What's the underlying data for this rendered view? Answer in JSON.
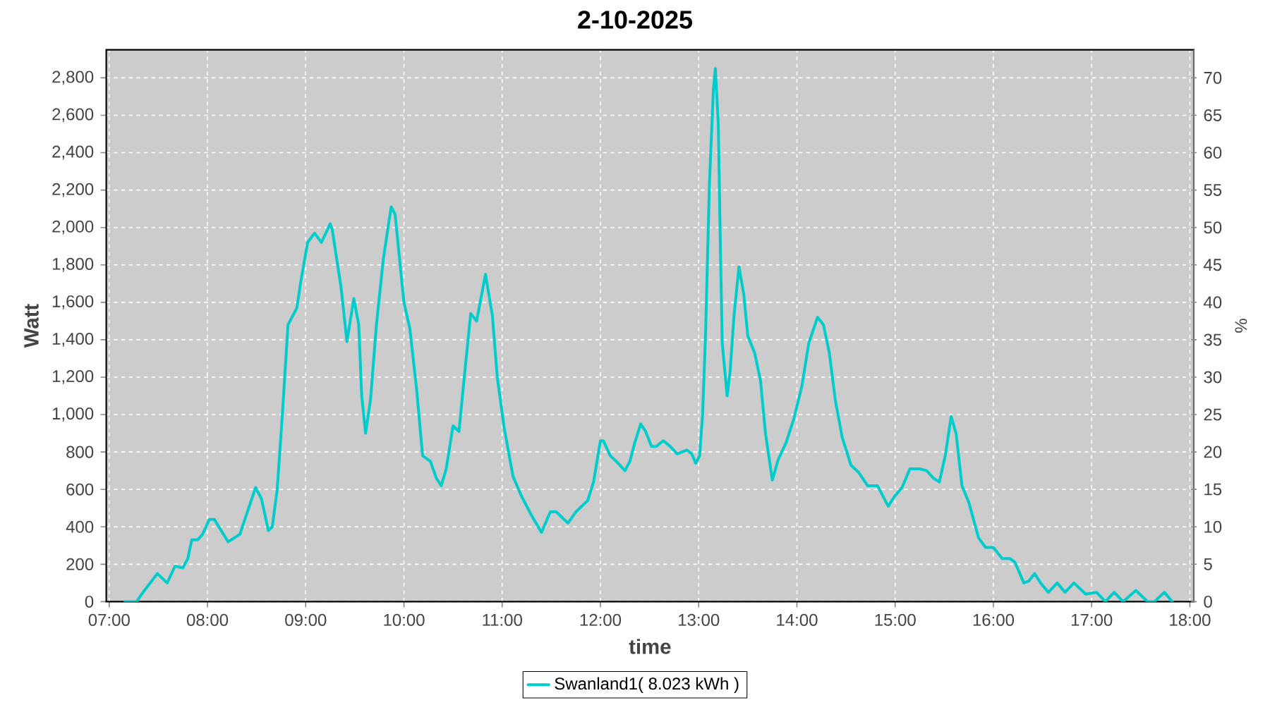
{
  "chart_data": {
    "type": "line",
    "title": "2-10-2025",
    "xlabel": "time",
    "ylabel": "Watt",
    "y2label": "%",
    "x": [
      7.16,
      7.28,
      7.33,
      7.49,
      7.59,
      7.67,
      7.75,
      7.8,
      7.84,
      7.9,
      7.95,
      8.02,
      8.07,
      8.21,
      8.33,
      8.42,
      8.49,
      8.55,
      8.62,
      8.66,
      8.71,
      8.76,
      8.82,
      8.91,
      8.95,
      9.02,
      9.09,
      9.16,
      9.25,
      9.27,
      9.36,
      9.42,
      9.49,
      9.54,
      9.57,
      9.61,
      9.66,
      9.72,
      9.79,
      9.87,
      9.91,
      10.0,
      10.06,
      10.13,
      10.19,
      10.27,
      10.33,
      10.38,
      10.43,
      10.5,
      10.56,
      10.62,
      10.68,
      10.74,
      10.83,
      10.9,
      10.95,
      11.02,
      11.11,
      11.2,
      11.3,
      11.4,
      11.49,
      11.55,
      11.67,
      11.75,
      11.87,
      11.93,
      12.0,
      12.03,
      12.1,
      12.18,
      12.25,
      12.3,
      12.35,
      12.41,
      12.46,
      12.52,
      12.57,
      12.64,
      12.71,
      12.78,
      12.88,
      12.93,
      12.97,
      13.01,
      13.04,
      13.07,
      13.11,
      13.15,
      13.17,
      13.2,
      13.22,
      13.24,
      13.29,
      13.32,
      13.36,
      13.41,
      13.46,
      13.5,
      13.57,
      13.63,
      13.68,
      13.75,
      13.81,
      13.89,
      13.97,
      14.05,
      14.12,
      14.21,
      14.27,
      14.33,
      14.39,
      14.46,
      14.55,
      14.63,
      14.72,
      14.82,
      14.93,
      14.99,
      15.07,
      15.15,
      15.25,
      15.32,
      15.39,
      15.45,
      15.51,
      15.57,
      15.62,
      15.68,
      15.75,
      15.85,
      15.92,
      16.0,
      16.09,
      16.17,
      16.22,
      16.31,
      16.36,
      16.42,
      16.48,
      16.56,
      16.65,
      16.73,
      16.82,
      16.94,
      17.05,
      17.14,
      17.23,
      17.32,
      17.45,
      17.57,
      17.64,
      17.74,
      17.82
    ],
    "series": [
      {
        "name": "Swanland1( 8.023 kWh )",
        "color": "#00cccc",
        "values": [
          0,
          0,
          40,
          150,
          100,
          190,
          180,
          230,
          330,
          330,
          360,
          440,
          440,
          320,
          360,
          500,
          610,
          550,
          380,
          400,
          600,
          980,
          1480,
          1570,
          1710,
          1920,
          1970,
          1920,
          2020,
          1990,
          1680,
          1390,
          1620,
          1480,
          1100,
          900,
          1080,
          1480,
          1830,
          2110,
          2070,
          1600,
          1460,
          1130,
          780,
          750,
          660,
          620,
          710,
          940,
          910,
          1230,
          1540,
          1500,
          1750,
          1530,
          1200,
          930,
          670,
          560,
          460,
          370,
          480,
          480,
          420,
          480,
          540,
          640,
          860,
          860,
          780,
          740,
          700,
          750,
          850,
          950,
          910,
          830,
          830,
          860,
          830,
          790,
          810,
          790,
          740,
          780,
          1000,
          1430,
          2240,
          2740,
          2850,
          2550,
          1930,
          1380,
          1100,
          1230,
          1530,
          1790,
          1640,
          1420,
          1330,
          1180,
          900,
          650,
          760,
          850,
          980,
          1150,
          1380,
          1520,
          1480,
          1330,
          1080,
          880,
          730,
          690,
          620,
          620,
          510,
          560,
          610,
          710,
          710,
          700,
          660,
          640,
          780,
          990,
          900,
          620,
          530,
          340,
          290,
          290,
          230,
          230,
          210,
          100,
          110,
          150,
          100,
          50,
          100,
          50,
          100,
          40,
          50,
          0,
          50,
          0,
          60,
          0,
          0,
          50,
          0
        ]
      }
    ],
    "xlim": [
      6.97,
      18.04
    ],
    "xticks": [
      {
        "value": 7,
        "label": "07:00"
      },
      {
        "value": 8,
        "label": "08:00"
      },
      {
        "value": 9,
        "label": "09:00"
      },
      {
        "value": 10,
        "label": "10:00"
      },
      {
        "value": 11,
        "label": "11:00"
      },
      {
        "value": 12,
        "label": "12:00"
      },
      {
        "value": 13,
        "label": "13:00"
      },
      {
        "value": 14,
        "label": "14:00"
      },
      {
        "value": 15,
        "label": "15:00"
      },
      {
        "value": 16,
        "label": "16:00"
      },
      {
        "value": 17,
        "label": "17:00"
      },
      {
        "value": 18,
        "label": "18:00"
      }
    ],
    "ylim": [
      0,
      2950
    ],
    "yticks": [
      0,
      200,
      400,
      600,
      800,
      {
        "value": 1000,
        "label": "1,000"
      },
      {
        "value": 1200,
        "label": "1,200"
      },
      {
        "value": 1400,
        "label": "1,400"
      },
      {
        "value": 1600,
        "label": "1,600"
      },
      {
        "value": 1800,
        "label": "1,800"
      },
      {
        "value": 2000,
        "label": "2,000"
      },
      {
        "value": 2200,
        "label": "2,200"
      },
      {
        "value": 2400,
        "label": "2,400"
      },
      {
        "value": 2600,
        "label": "2,600"
      },
      {
        "value": 2800,
        "label": "2,800"
      }
    ],
    "y2lim": [
      0,
      73.75
    ],
    "y2ticks": [
      0,
      5,
      10,
      15,
      20,
      25,
      30,
      35,
      40,
      45,
      50,
      55,
      60,
      65,
      70
    ],
    "grid": true,
    "legend": "bottom"
  }
}
